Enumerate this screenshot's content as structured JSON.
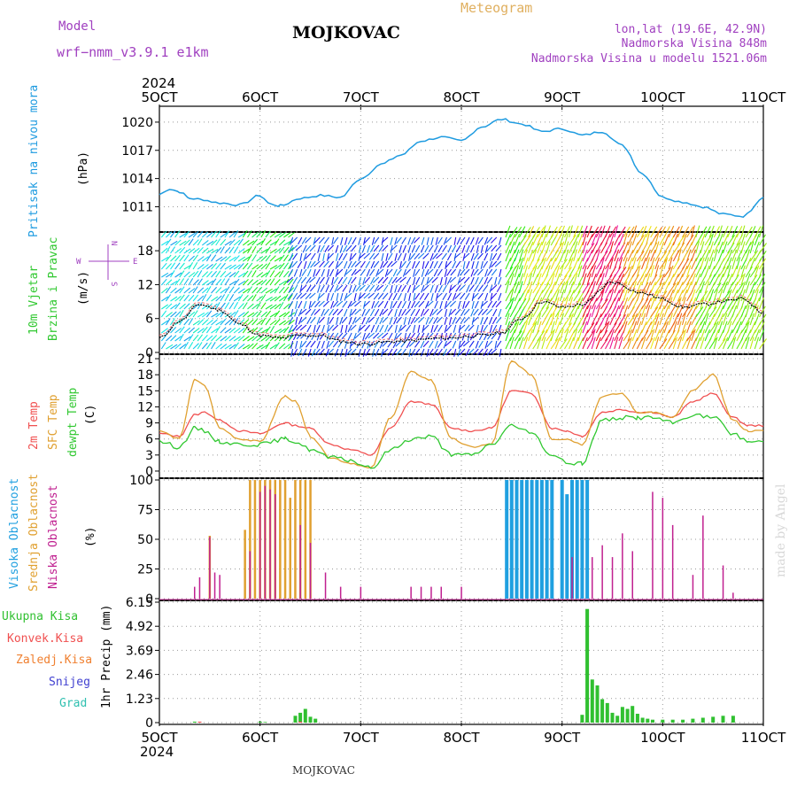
{
  "header": {
    "model_label": "Model",
    "model_name": "wrf−nmm_v3.9.1 e1km",
    "station": "MOJKOVAC",
    "product": "Meteogram",
    "lonlat": "lon,lat (19.6E, 42.9N)",
    "altitude": "Nadmorska Visina 848m",
    "model_altitude": "Nadmorska Visina u modelu 1521.06m",
    "credit": "made by Angel",
    "footer_station": "MOJKOVAC"
  },
  "colors": {
    "pressure": "#1e9be0",
    "temp2m": "#f05050",
    "sfc_temp": "#e0a030",
    "dewpoint": "#30c830",
    "high_cloud": "#20a0e0",
    "mid_cloud": "#e0a030",
    "low_cloud": "#c02090",
    "total_precip": "#30c030",
    "conv_precip": "#f05050",
    "frz_precip": "#f08030",
    "snow": "#4040d0",
    "hail": "#30c0b0",
    "title_purple": "#a040c0",
    "meteogram_orange": "#e0b060",
    "wind_vr": "#a040c0"
  },
  "time_axis": {
    "year": "2024",
    "ticks": [
      "5OCT",
      "6OCT",
      "7OCT",
      "8OCT",
      "9OCT",
      "10OCT",
      "11OCT"
    ]
  },
  "panels": {
    "pressure": {
      "ylabel": "Pritisak na nivou mora",
      "unit": "(hPa)"
    },
    "wind": {
      "ylabel_1": "10m Vjetar",
      "ylabel_2": "Brzina i Pravac",
      "unit": "(m/s)",
      "compass_n": "N",
      "compass_s": "S",
      "compass_w": "W",
      "compass_e": "E"
    },
    "temp": {
      "label_2m": "2m Temp",
      "label_sfc": "SFC Temp",
      "label_dew": "dewpt Temp",
      "unit": "(C)"
    },
    "cloud": {
      "label_high": "Visoka Oblacnost",
      "label_mid": "Srednja Oblacnost",
      "label_low": "Niska Oblacnost",
      "unit": "(%)"
    },
    "precip": {
      "label_total": "Ukupna Kisa",
      "label_conv": "Konvek.Kisa",
      "label_frz": "Zaledj.Kisa",
      "label_snow": "Snijeg",
      "label_hail": "Grad",
      "unit": "1hr Precip (mm)"
    }
  },
  "chart_data": [
    {
      "type": "line",
      "name": "pressure",
      "ylabel": "Pritisak na nivou mora (hPa)",
      "ylim": [
        1008.5,
        1021.5
      ],
      "yticks": [
        1011,
        1014,
        1017,
        1020
      ],
      "x_days": [
        0,
        0.1,
        0.2,
        0.3,
        0.4,
        0.6,
        0.8,
        1.0,
        1.1,
        1.2,
        1.4,
        1.6,
        1.8,
        2.0,
        2.2,
        2.4,
        2.6,
        2.8,
        3.0,
        3.2,
        3.4,
        3.6,
        3.8,
        4.0,
        4.2,
        4.4,
        4.6,
        4.8,
        5.0,
        5.2,
        5.4,
        5.6,
        5.8,
        6.0
      ],
      "values": [
        1012.3,
        1012.9,
        1012.6,
        1011.9,
        1011.8,
        1011.4,
        1011.2,
        1012.2,
        1011.3,
        1011.1,
        1011.9,
        1012.2,
        1012.0,
        1014.0,
        1015.5,
        1016.5,
        1018.0,
        1018.4,
        1018.0,
        1019.5,
        1020.3,
        1019.8,
        1019.0,
        1019.3,
        1018.6,
        1019.0,
        1017.5,
        1014.5,
        1012.0,
        1011.5,
        1011.0,
        1010.2,
        1010.0,
        1012.0
      ]
    },
    {
      "type": "line",
      "name": "wind_speed",
      "ylabel": "10m Vjetar Brzina i Pravac (m/s)",
      "ylim": [
        0,
        21
      ],
      "yticks": [
        0,
        6,
        12,
        18
      ],
      "x_days": [
        0,
        0.2,
        0.4,
        0.6,
        0.8,
        1.0,
        1.2,
        1.4,
        1.6,
        1.8,
        2.0,
        2.4,
        2.8,
        3.2,
        3.4,
        3.6,
        3.8,
        4.0,
        4.2,
        4.5,
        4.8,
        5.0,
        5.2,
        5.4,
        5.6,
        5.8,
        6.0
      ],
      "values": [
        2.5,
        5.5,
        8.5,
        7.5,
        5.0,
        3.0,
        2.5,
        3.0,
        3.0,
        2.0,
        1.5,
        2.0,
        2.5,
        3.0,
        3.5,
        6.0,
        9.0,
        8.0,
        8.5,
        12.5,
        10.5,
        9.5,
        8.0,
        8.5,
        9.0,
        9.5,
        7.0
      ]
    },
    {
      "type": "line",
      "name": "temperature",
      "ylabel": "(C)",
      "ylim": [
        -1,
        21.5
      ],
      "yticks": [
        0,
        3,
        6,
        9,
        12,
        15,
        18,
        21
      ],
      "x_days": [
        0,
        0.2,
        0.35,
        0.45,
        0.6,
        0.8,
        1.0,
        1.25,
        1.35,
        1.5,
        1.7,
        1.9,
        2.1,
        2.3,
        2.5,
        2.7,
        2.9,
        3.1,
        3.3,
        3.5,
        3.7,
        3.9,
        4.05,
        4.2,
        4.4,
        4.6,
        4.75,
        4.9,
        5.1,
        5.3,
        5.5,
        5.7,
        5.85,
        6.0
      ],
      "series": [
        {
          "name": "2m Temp",
          "values": [
            7.0,
            6.5,
            10.5,
            11.0,
            9.5,
            7.5,
            7.0,
            9.0,
            8.5,
            8.0,
            5.0,
            4.0,
            3.0,
            8.0,
            13.0,
            12.5,
            8.0,
            7.5,
            8.0,
            15.0,
            14.5,
            8.0,
            7.5,
            6.5,
            11.0,
            11.5,
            11.0,
            11.0,
            10.0,
            13.0,
            14.5,
            10.0,
            8.5,
            8.5
          ]
        },
        {
          "name": "SFC Temp",
          "values": [
            7.5,
            6.0,
            17.0,
            16.0,
            8.0,
            6.0,
            5.5,
            14.0,
            13.0,
            6.5,
            2.5,
            1.5,
            0.5,
            10.0,
            18.5,
            17.0,
            6.0,
            4.5,
            5.0,
            20.5,
            18.0,
            6.0,
            6.0,
            5.0,
            14.0,
            14.5,
            11.0,
            11.0,
            10.0,
            15.0,
            18.0,
            9.5,
            7.5,
            7.5
          ]
        },
        {
          "name": "dewpt Temp",
          "values": [
            5.5,
            4.5,
            8.0,
            7.5,
            5.5,
            5.0,
            5.0,
            6.0,
            5.5,
            4.0,
            2.5,
            2.0,
            0.5,
            4.0,
            6.0,
            6.5,
            3.0,
            3.0,
            5.0,
            8.5,
            7.0,
            3.0,
            1.5,
            1.5,
            9.5,
            10.0,
            10.0,
            10.0,
            9.0,
            10.5,
            10.0,
            7.0,
            5.5,
            5.5
          ]
        }
      ]
    },
    {
      "type": "bar",
      "name": "cloud_cover",
      "ylabel": "(%)",
      "ylim": [
        0,
        100
      ],
      "yticks": [
        0,
        25,
        50,
        75,
        100
      ],
      "series": [
        {
          "name": "Visoka Oblacnost",
          "x_days": [
            3.45,
            3.5,
            3.55,
            3.6,
            3.65,
            3.7,
            3.75,
            3.8,
            3.85,
            3.9,
            4.0,
            4.05,
            4.1,
            4.15,
            4.2,
            4.25
          ],
          "values": [
            100,
            100,
            100,
            100,
            100,
            100,
            100,
            100,
            100,
            100,
            100,
            88,
            100,
            100,
            100,
            100
          ]
        },
        {
          "name": "Srednja Oblacnost",
          "x_days": [
            0.5,
            0.85,
            0.9,
            0.95,
            1.0,
            1.05,
            1.1,
            1.15,
            1.2,
            1.25,
            1.3,
            1.35,
            1.4,
            1.45,
            1.5
          ],
          "values": [
            53,
            58,
            100,
            100,
            100,
            100,
            100,
            100,
            100,
            100,
            85,
            100,
            100,
            100,
            100
          ]
        },
        {
          "name": "Niska Oblacnost",
          "x_days": [
            0.35,
            0.4,
            0.5,
            0.55,
            0.6,
            0.9,
            1.0,
            1.05,
            1.1,
            1.15,
            1.4,
            1.5,
            1.65,
            1.8,
            2.0,
            2.5,
            2.6,
            2.7,
            2.8,
            3.0,
            4.1,
            4.3,
            4.4,
            4.5,
            4.6,
            4.7,
            4.9,
            5.0,
            5.1,
            5.3,
            5.4,
            5.6,
            5.7
          ],
          "values": [
            10,
            18,
            52,
            22,
            20,
            40,
            90,
            95,
            92,
            88,
            62,
            47,
            22,
            10,
            10,
            10,
            10,
            10,
            10,
            10,
            35,
            35,
            45,
            35,
            55,
            40,
            90,
            85,
            62,
            20,
            70,
            28,
            5
          ]
        }
      ]
    },
    {
      "type": "bar",
      "name": "precipitation",
      "ylabel": "1hr Precip (mm)",
      "ylim": [
        0,
        6.15
      ],
      "yticks": [
        0,
        1.23,
        2.46,
        3.69,
        4.92,
        6.15
      ],
      "series": [
        {
          "name": "Ukupna Kisa",
          "x_days": [
            0.35,
            0.4,
            1.0,
            1.05,
            1.35,
            1.4,
            1.45,
            1.5,
            1.55,
            4.2,
            4.25,
            4.3,
            4.35,
            4.4,
            4.45,
            4.5,
            4.55,
            4.6,
            4.65,
            4.7,
            4.75,
            4.8,
            4.85,
            4.9,
            5.0,
            5.1,
            5.2,
            5.3,
            5.4,
            5.5,
            5.6,
            5.7
          ],
          "values": [
            0.05,
            0.03,
            0.05,
            0.03,
            0.35,
            0.5,
            0.7,
            0.3,
            0.2,
            0.4,
            5.8,
            2.2,
            1.9,
            1.2,
            1.0,
            0.5,
            0.35,
            0.8,
            0.7,
            0.85,
            0.45,
            0.25,
            0.2,
            0.15,
            0.15,
            0.15,
            0.15,
            0.2,
            0.25,
            0.3,
            0.35,
            0.35
          ]
        },
        {
          "name": "Konvek.Kisa",
          "x_days": [
            0.4,
            1.4
          ],
          "values": [
            0.05,
            0.05
          ]
        }
      ]
    }
  ]
}
